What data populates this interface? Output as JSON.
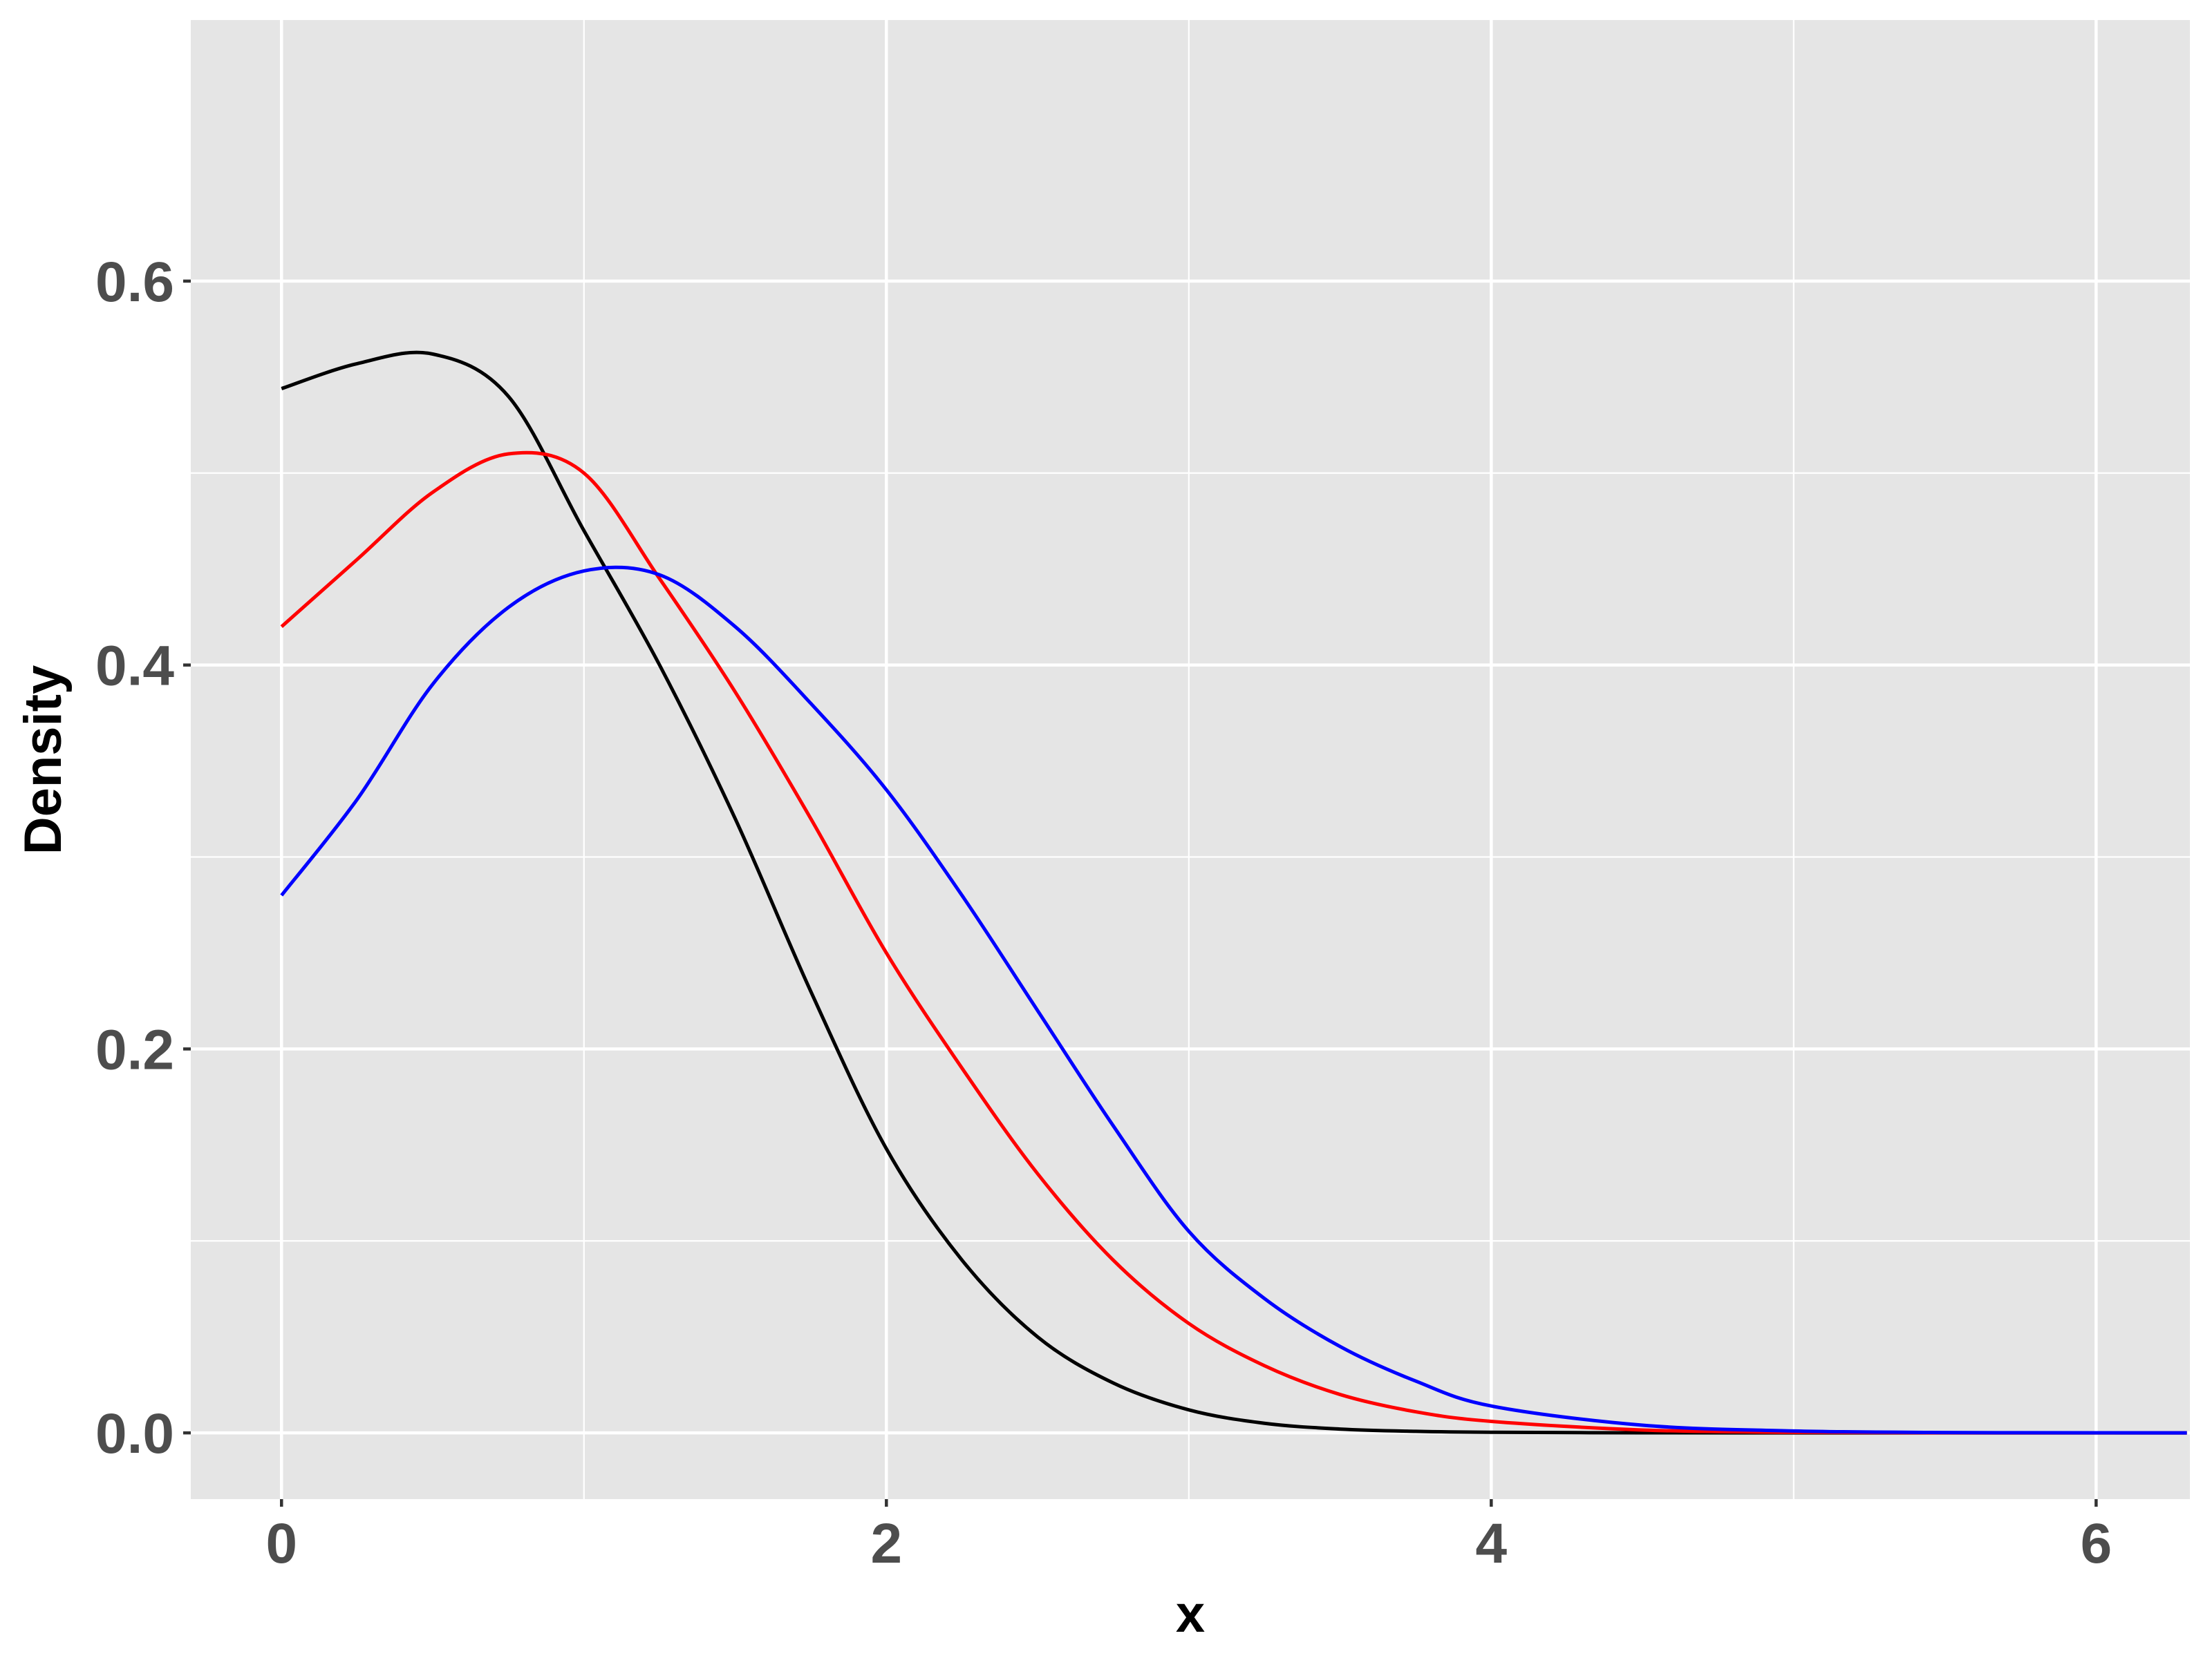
{
  "chart_data": {
    "type": "line",
    "x_label": "x",
    "y_label": "Density",
    "x": [
      0,
      0.25,
      0.5,
      0.75,
      1,
      1.25,
      1.5,
      1.75,
      2,
      2.25,
      2.5,
      2.75,
      3,
      3.25,
      3.5,
      3.75,
      4,
      4.5,
      5,
      5.5,
      6,
      6.3
    ],
    "series": [
      {
        "color": "#000000",
        "values": [
          0.544,
          0.557,
          0.562,
          0.54,
          0.47,
          0.4,
          0.32,
          0.23,
          0.148,
          0.09,
          0.05,
          0.026,
          0.012,
          0.005,
          0.002,
          0.0008,
          0.0003,
          5e-05,
          0,
          0,
          0,
          0
        ]
      },
      {
        "color": "#ff0000",
        "values": [
          0.42,
          0.455,
          0.49,
          0.51,
          0.5,
          0.445,
          0.386,
          0.32,
          0.25,
          0.19,
          0.135,
          0.09,
          0.057,
          0.035,
          0.02,
          0.011,
          0.006,
          0.0015,
          0.0003,
          5e-05,
          0,
          0
        ]
      },
      {
        "color": "#0000ff",
        "values": [
          0.28,
          0.33,
          0.39,
          0.43,
          0.449,
          0.447,
          0.42,
          0.38,
          0.335,
          0.28,
          0.22,
          0.16,
          0.105,
          0.07,
          0.045,
          0.027,
          0.014,
          0.004,
          0.001,
          0.0002,
          3e-05,
          0
        ]
      }
    ],
    "xlim": [
      -0.3,
      6.31
    ],
    "ylim": [
      -0.0345,
      0.736
    ],
    "xticks": [
      0,
      2,
      4,
      6
    ],
    "yticks": [
      {
        "value": 0,
        "label": "0.0"
      },
      {
        "value": 0.2,
        "label": "0.2"
      },
      {
        "value": 0.4,
        "label": "0.4"
      },
      {
        "value": 0.6,
        "label": "0.6"
      }
    ],
    "x_minor_breaks": [
      1,
      3,
      5
    ],
    "y_minor_breaks": [
      0.1,
      0.3,
      0.5
    ],
    "grid": true,
    "background": "#e5e5e5"
  }
}
